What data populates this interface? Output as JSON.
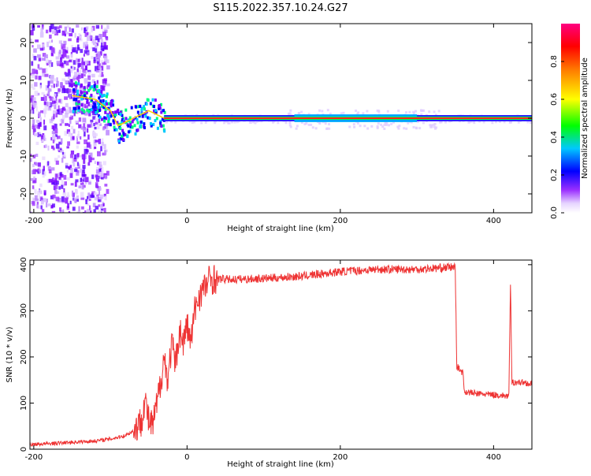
{
  "title": "S115.2022.357.10.24.G27",
  "chart_data": [
    {
      "type": "heatmap",
      "xlabel": "Height of straight line (km)",
      "ylabel": "Frequency (Hz)",
      "xlim": [
        -205,
        450
      ],
      "ylim": [
        -25,
        25
      ],
      "xticks": [
        -200,
        0,
        200,
        400
      ],
      "yticks": [
        -20,
        -10,
        0,
        10,
        20
      ],
      "colorbar": {
        "label": "Normalized spectral amplitude",
        "range": [
          0,
          1
        ],
        "ticks": [
          0.0,
          0.2,
          0.4,
          0.6,
          0.8
        ]
      },
      "ridge_frequency_hz": [
        {
          "x": -150,
          "y": 6
        },
        {
          "x": -120,
          "y": 5
        },
        {
          "x": -100,
          "y": 2
        },
        {
          "x": -90,
          "y": -2
        },
        {
          "x": -80,
          "y": -1
        },
        {
          "x": -60,
          "y": 1
        },
        {
          "x": -50,
          "y": 2
        },
        {
          "x": -30,
          "y": 0
        },
        {
          "x": 0,
          "y": 0
        },
        {
          "x": 140,
          "y": 0
        },
        {
          "x": 200,
          "y": -0.5
        },
        {
          "x": 450,
          "y": 0
        }
      ]
    },
    {
      "type": "line",
      "xlabel": "Height of straight line (km)",
      "ylabel": "SNR (10 * v/v)",
      "xlim": [
        -205,
        450
      ],
      "ylim": [
        0,
        410
      ],
      "xticks": [
        -200,
        0,
        200,
        400
      ],
      "yticks": [
        0,
        100,
        200,
        300,
        400
      ],
      "color": "#ee3333",
      "series": [
        {
          "points": [
            [
              -205,
              10
            ],
            [
              -180,
              12
            ],
            [
              -150,
              15
            ],
            [
              -120,
              18
            ],
            [
              -100,
              22
            ],
            [
              -80,
              30
            ],
            [
              -70,
              40
            ],
            [
              -60,
              60
            ],
            [
              -55,
              110
            ],
            [
              -50,
              60
            ],
            [
              -45,
              50
            ],
            [
              -40,
              90
            ],
            [
              -35,
              140
            ],
            [
              -30,
              200
            ],
            [
              -25,
              150
            ],
            [
              -20,
              230
            ],
            [
              -15,
              180
            ],
            [
              -10,
              260
            ],
            [
              -5,
              230
            ],
            [
              0,
              270
            ],
            [
              5,
              230
            ],
            [
              10,
              300
            ],
            [
              15,
              330
            ],
            [
              20,
              345
            ],
            [
              25,
              355
            ],
            [
              30,
              370
            ],
            [
              60,
              368
            ],
            [
              100,
              370
            ],
            [
              150,
              375
            ],
            [
              200,
              385
            ],
            [
              250,
              390
            ],
            [
              300,
              390
            ],
            [
              350,
              395
            ],
            [
              352,
              180
            ],
            [
              360,
              165
            ],
            [
              362,
              125
            ],
            [
              380,
              120
            ],
            [
              400,
              118
            ],
            [
              420,
              115
            ],
            [
              422,
              360
            ],
            [
              424,
              145
            ],
            [
              440,
              145
            ],
            [
              450,
              140
            ]
          ]
        }
      ]
    }
  ]
}
